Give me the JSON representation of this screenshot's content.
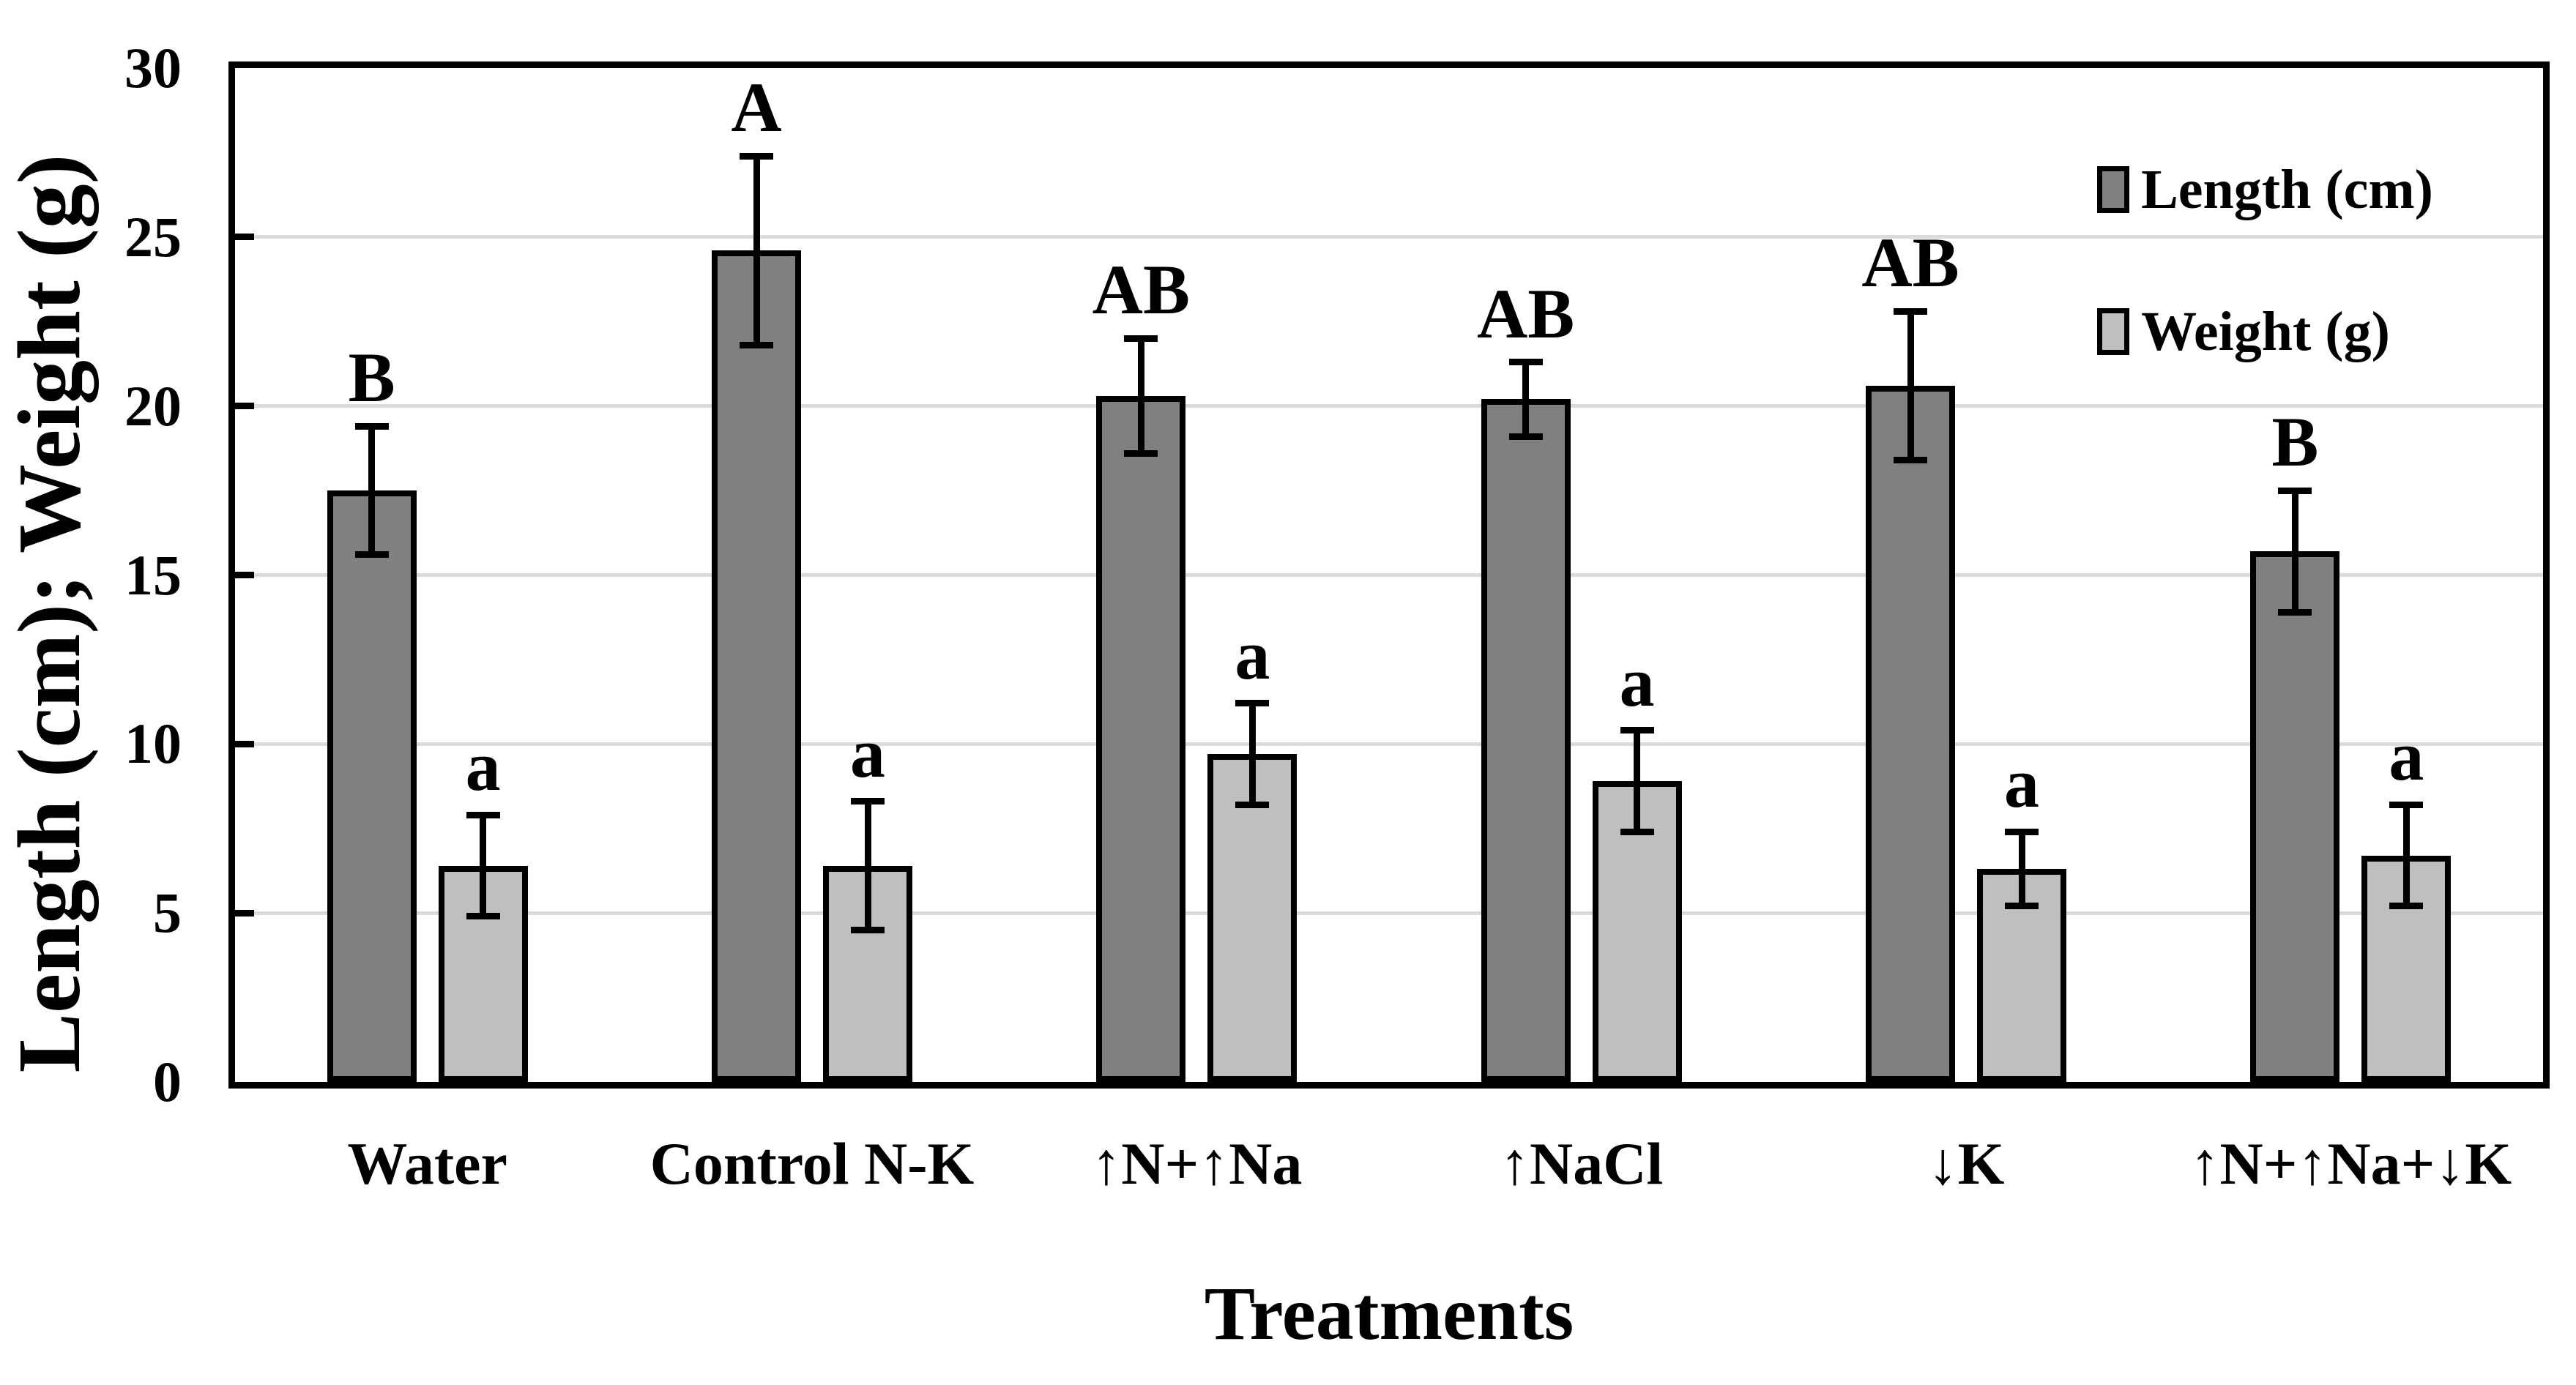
{
  "chart_data": {
    "type": "bar",
    "title": "",
    "xlabel": "Treatments",
    "ylabel": "Length (cm); Weight (g)",
    "ylim": [
      0,
      30
    ],
    "yticks": [
      0,
      5,
      10,
      15,
      20,
      25,
      30
    ],
    "grid": "horizontal gridlines every 5 units",
    "legend_position": "top-right inside plot",
    "categories": [
      "Water",
      "Control N-K",
      "↑N+↑Na",
      "↑NaCl",
      "↓K",
      "↑N+↑Na+↓K"
    ],
    "series": [
      {
        "name": "Length (cm)",
        "color": "#808080",
        "values": [
          17.5,
          24.6,
          20.3,
          20.2,
          20.6,
          15.7
        ],
        "error_bars": [
          1.9,
          2.8,
          1.7,
          1.1,
          2.2,
          1.8
        ],
        "significance_letters": [
          "B",
          "A",
          "AB",
          "AB",
          "AB",
          "B"
        ]
      },
      {
        "name": "Weight (g)",
        "color": "#BFBFBF",
        "values": [
          6.4,
          6.4,
          9.7,
          8.9,
          6.3,
          6.7
        ],
        "error_bars": [
          1.5,
          1.9,
          1.5,
          1.5,
          1.1,
          1.5
        ],
        "significance_letters": [
          "a",
          "a",
          "a",
          "a",
          "a",
          "a"
        ]
      }
    ]
  },
  "styles": {
    "background": "#FFFFFF",
    "axis_color": "#000000",
    "gridline_color": "#DBDBDB",
    "bar_border_color": "#000000",
    "error_bar_color": "#000000",
    "text_color": "#000000"
  }
}
